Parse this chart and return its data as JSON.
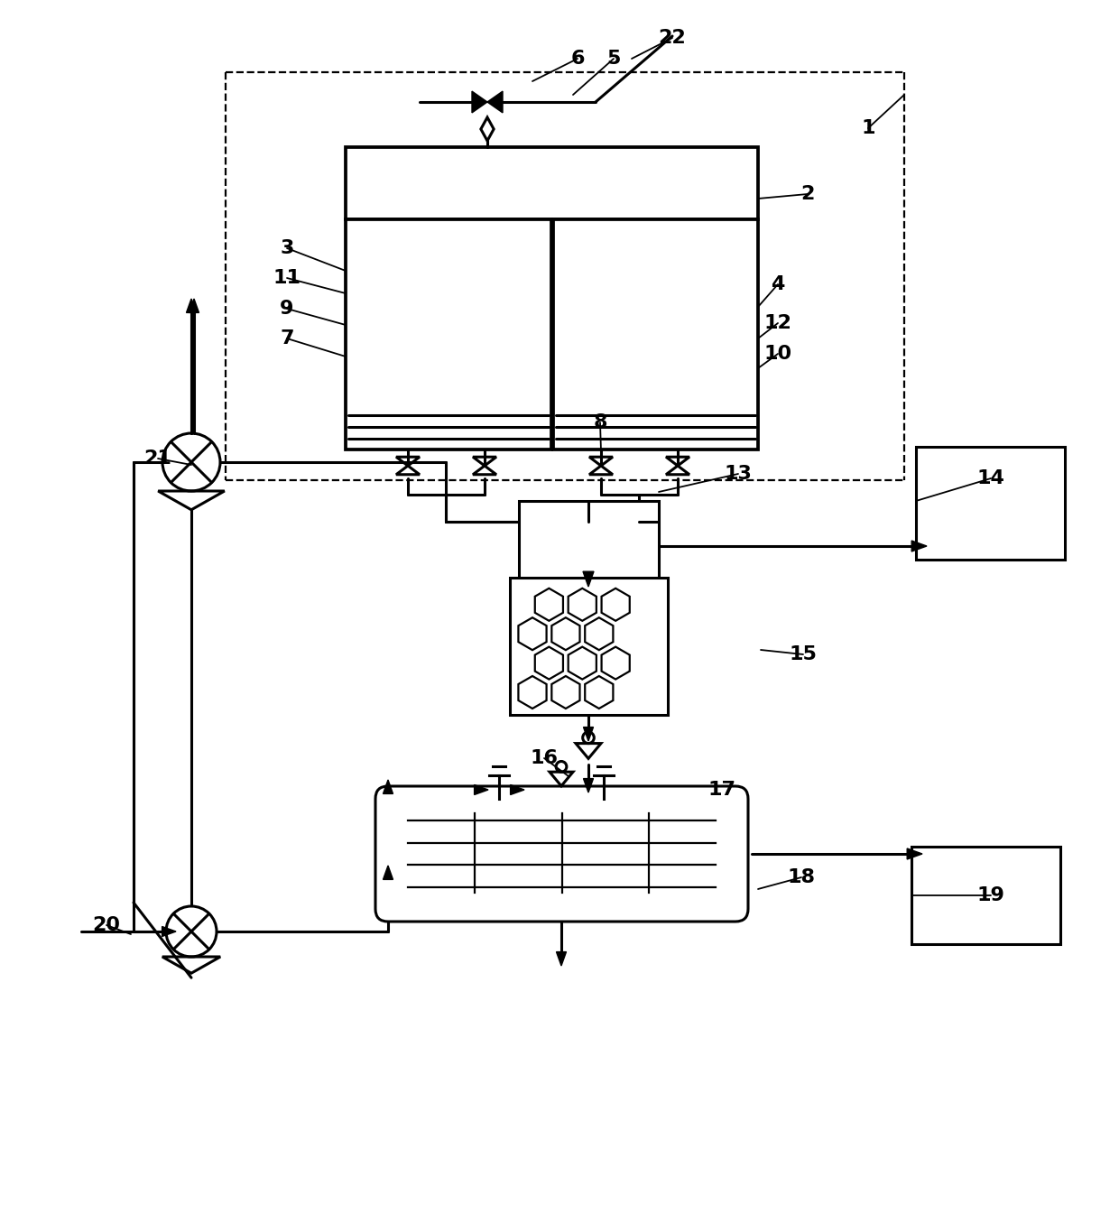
{
  "bg_color": "#ffffff",
  "line_color": "#000000",
  "lw": 2.2,
  "fs": 16
}
